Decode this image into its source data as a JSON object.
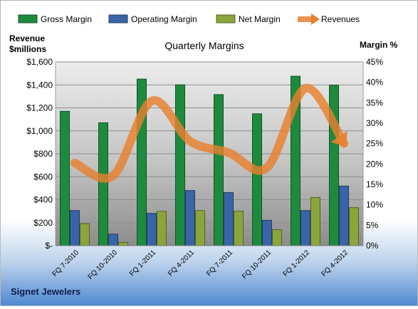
{
  "chart_data": {
    "type": "bar",
    "title": "Quarterly Margins",
    "ylabel_left": [
      "Revenue",
      "$millions"
    ],
    "ylabel_right": "Margin %",
    "footer": "Signet Jewelers",
    "categories": [
      "FQ 7-2010",
      "FQ 10-2010",
      "FQ 1-2011",
      "FQ 4-2011",
      "FQ 7-2011",
      "FQ 10-2011",
      "FQ 1-2012",
      "FQ 4-2012"
    ],
    "left_axis": {
      "min": 0,
      "max": 1600,
      "step": 200,
      "tick_labels": [
        "$-",
        "$200",
        "$400",
        "$600",
        "$800",
        "$1,000",
        "$1,200",
        "$1,400",
        "$1,600"
      ]
    },
    "right_axis": {
      "min": 0,
      "max": 45,
      "step": 5,
      "tick_labels": [
        "0%",
        "5%",
        "10%",
        "15%",
        "20%",
        "25%",
        "30%",
        "35%",
        "40%",
        "45%"
      ]
    },
    "series": [
      {
        "name": "Gross Margin",
        "axis": "right",
        "kind": "bar",
        "color": "#1e8a3e",
        "values": [
          32.9,
          30.1,
          40.8,
          39.4,
          37.0,
          32.3,
          41.5,
          39.3
        ]
      },
      {
        "name": "Operating Margin",
        "axis": "right",
        "kind": "bar",
        "color": "#3a64a8",
        "values": [
          8.6,
          2.8,
          7.9,
          13.5,
          13.0,
          6.2,
          8.6,
          14.6
        ]
      },
      {
        "name": "Net Margin",
        "axis": "right",
        "kind": "bar",
        "color": "#8aa53c",
        "values": [
          5.4,
          0.8,
          8.4,
          8.6,
          8.4,
          3.9,
          11.8,
          9.3
        ]
      },
      {
        "name": "Revenues",
        "axis": "left",
        "kind": "line",
        "color": "#e8802e",
        "values": [
          720,
          610,
          1260,
          910,
          810,
          680,
          1370,
          890
        ]
      }
    ],
    "grid": true,
    "legend_position": "top"
  }
}
